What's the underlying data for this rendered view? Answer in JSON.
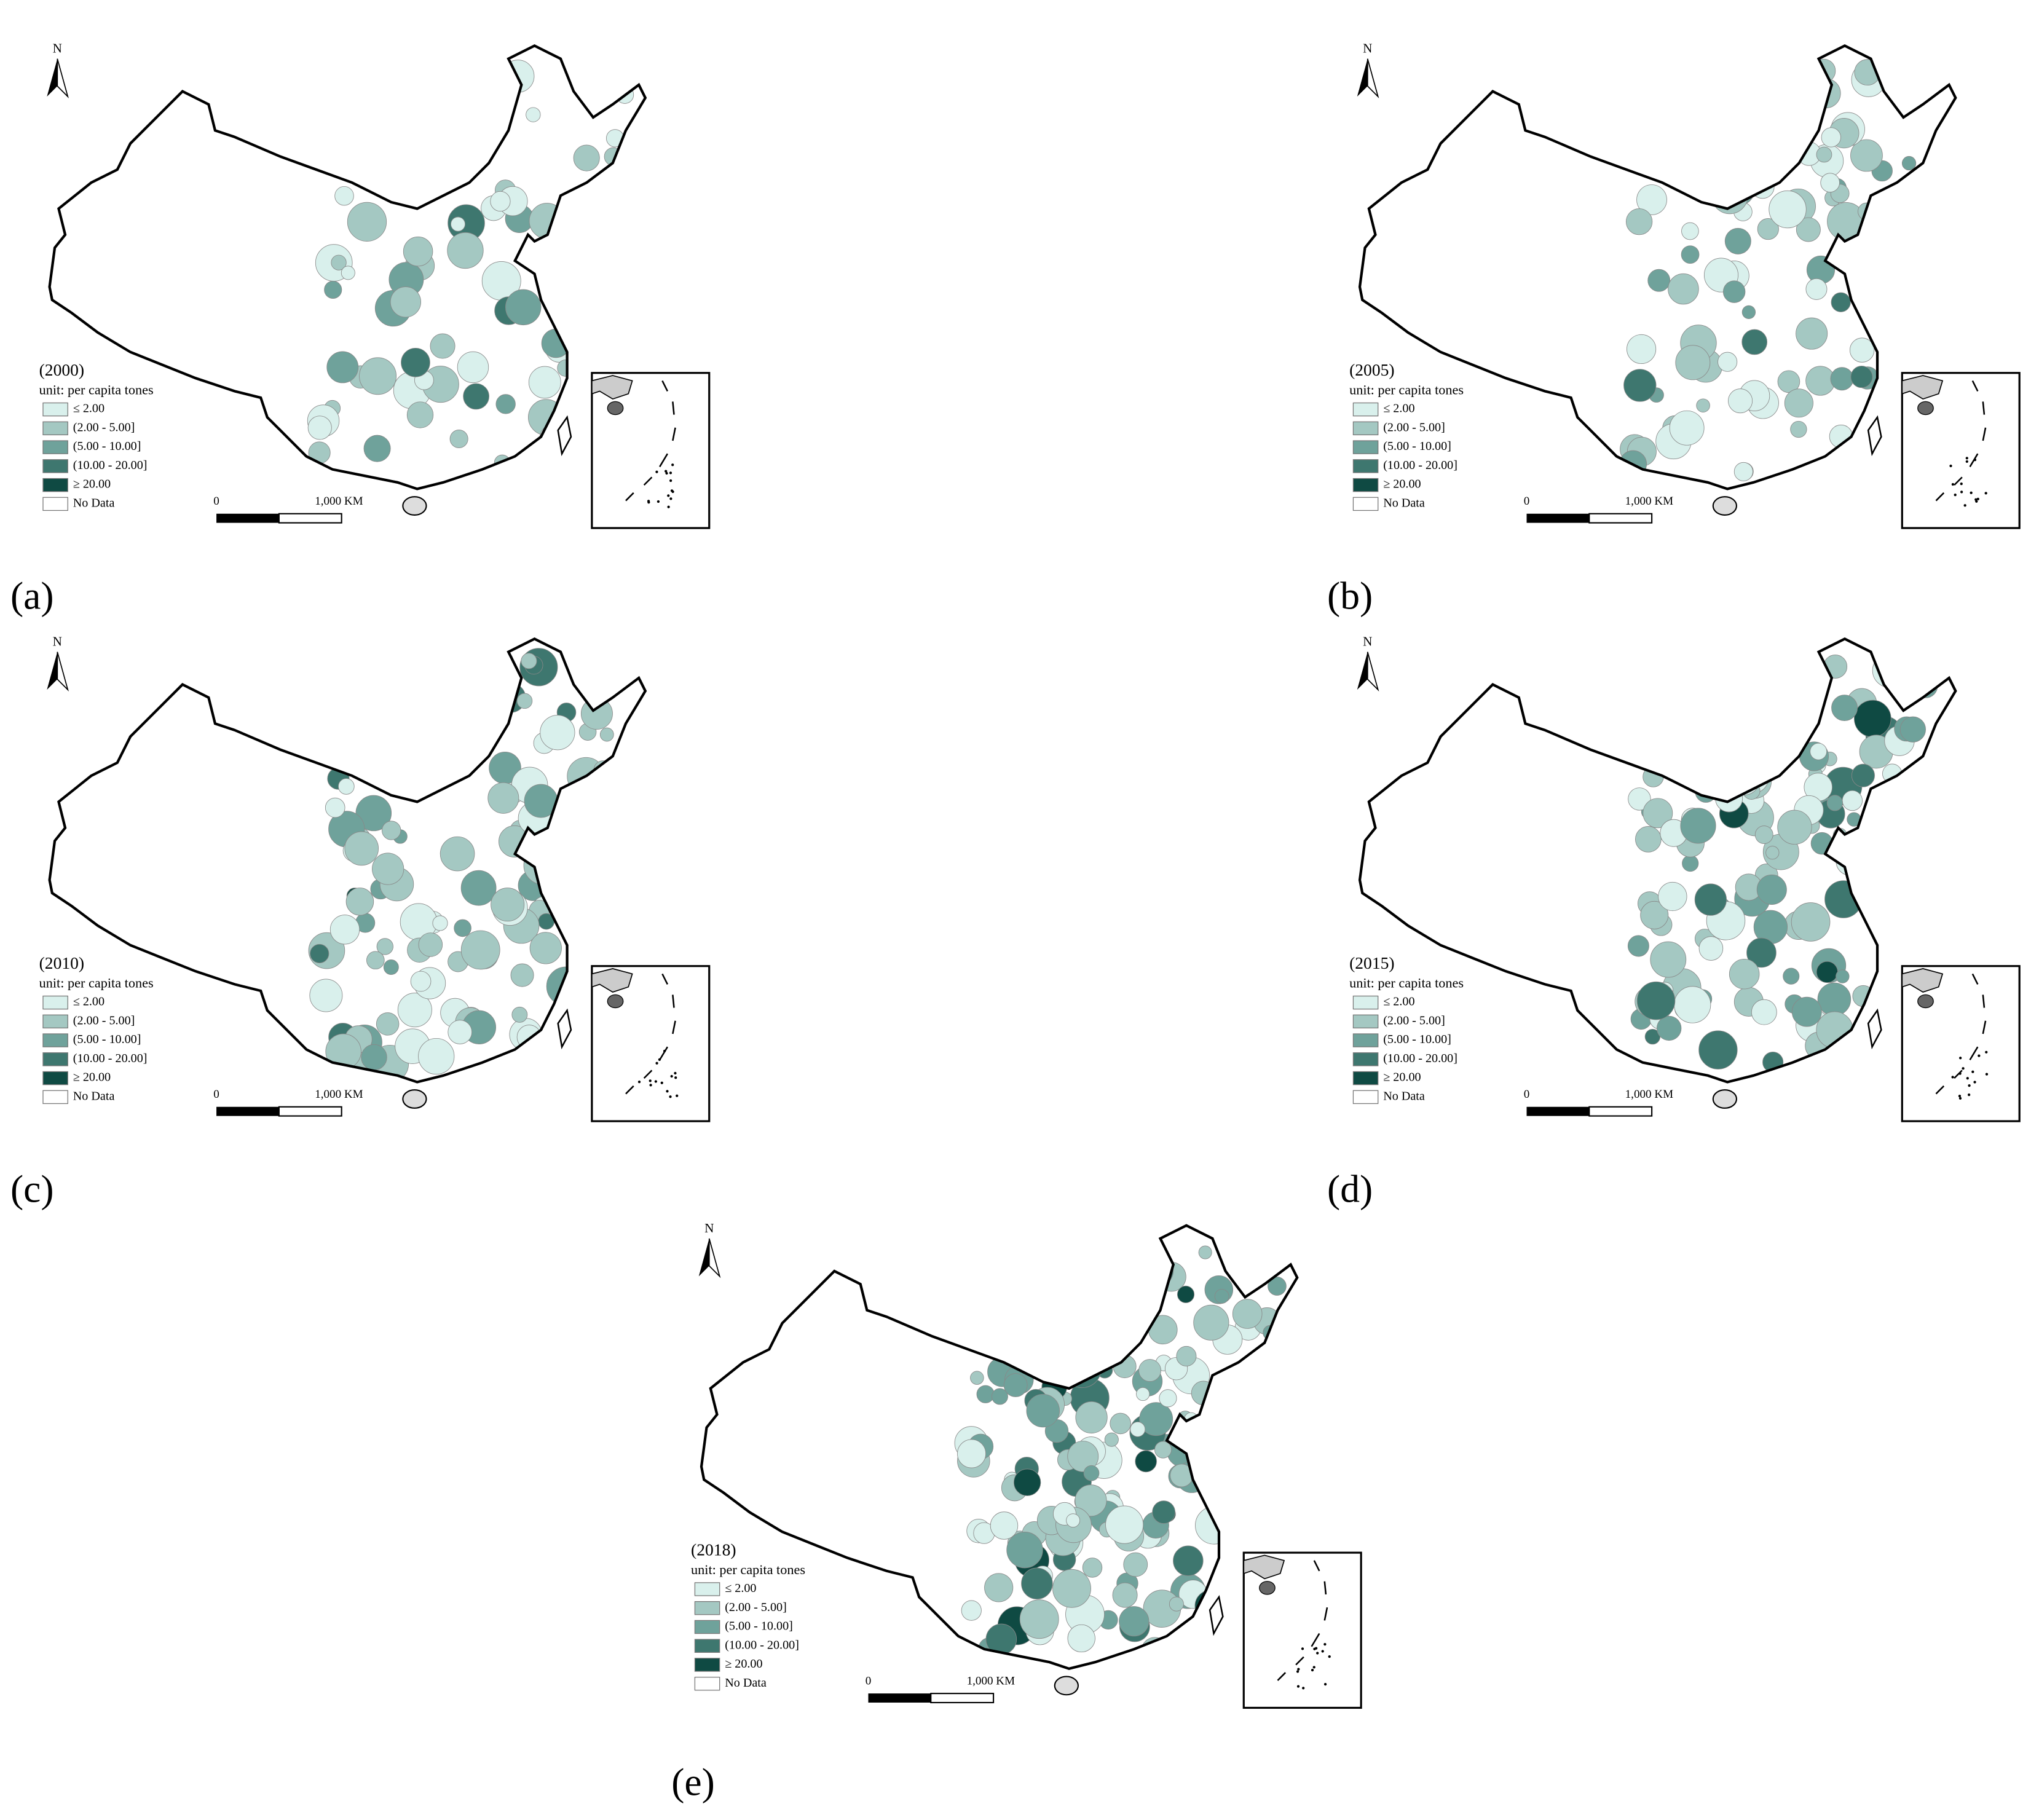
{
  "panels": [
    {
      "label": "(a)",
      "year": "(2000)",
      "unit": "unit: per capita tones",
      "north": "N",
      "scale": [
        "0",
        "1,000 KM"
      ],
      "legend": [
        {
          "label": "≤ 2.00",
          "color": "#d9f0ec"
        },
        {
          "label": "(2.00 - 5.00]",
          "color": "#a4c8c2"
        },
        {
          "label": "(5.00 - 10.00]",
          "color": "#6fa29b"
        },
        {
          "label": "(10.00 - 20.00]",
          "color": "#3e776f"
        },
        {
          "label": "≥ 20.00",
          "color": "#0f4a43"
        },
        {
          "label": "No Data",
          "color": "#ffffff"
        }
      ]
    },
    {
      "label": "(b)",
      "year": "(2005)",
      "unit": "unit: per capita tones",
      "north": "N",
      "scale": [
        "0",
        "1,000 KM"
      ],
      "legend": [
        {
          "label": "≤ 2.00",
          "color": "#d9f0ec"
        },
        {
          "label": "(2.00 - 5.00]",
          "color": "#a4c8c2"
        },
        {
          "label": "(5.00 - 10.00]",
          "color": "#6fa29b"
        },
        {
          "label": "(10.00 - 20.00]",
          "color": "#3e776f"
        },
        {
          "label": "≥ 20.00",
          "color": "#0f4a43"
        },
        {
          "label": "No Data",
          "color": "#ffffff"
        }
      ]
    },
    {
      "label": "(c)",
      "year": "(2010)",
      "unit": "unit: per capita tones",
      "north": "N",
      "scale": [
        "0",
        "1,000 KM"
      ],
      "legend": [
        {
          "label": "≤ 2.00",
          "color": "#d9f0ec"
        },
        {
          "label": "(2.00 - 5.00]",
          "color": "#a4c8c2"
        },
        {
          "label": "(5.00 - 10.00]",
          "color": "#6fa29b"
        },
        {
          "label": "(10.00 - 20.00]",
          "color": "#3e776f"
        },
        {
          "label": "≥ 20.00",
          "color": "#0f4a43"
        },
        {
          "label": "No Data",
          "color": "#ffffff"
        }
      ]
    },
    {
      "label": "(d)",
      "year": "(2015)",
      "unit": "unit: per capita tones",
      "north": "N",
      "scale": [
        "0",
        "1,000 KM"
      ],
      "legend": [
        {
          "label": "≤ 2.00",
          "color": "#d9f0ec"
        },
        {
          "label": "(2.00 - 5.00]",
          "color": "#a4c8c2"
        },
        {
          "label": "(5.00 - 10.00]",
          "color": "#6fa29b"
        },
        {
          "label": "(10.00 - 20.00]",
          "color": "#3e776f"
        },
        {
          "label": "≥ 20.00",
          "color": "#0f4a43"
        },
        {
          "label": "No Data",
          "color": "#ffffff"
        }
      ]
    },
    {
      "label": "(e)",
      "year": "(2018)",
      "unit": "unit: per capita tones",
      "north": "N",
      "scale": [
        "0",
        "1,000 KM"
      ],
      "legend": [
        {
          "label": "≤ 2.00",
          "color": "#d9f0ec"
        },
        {
          "label": "(2.00 - 5.00]",
          "color": "#a4c8c2"
        },
        {
          "label": "(5.00 - 10.00]",
          "color": "#6fa29b"
        },
        {
          "label": "(10.00 - 20.00]",
          "color": "#3e776f"
        },
        {
          "label": "≥ 20.00",
          "color": "#0f4a43"
        },
        {
          "label": "No Data",
          "color": "#ffffff"
        }
      ]
    }
  ]
}
